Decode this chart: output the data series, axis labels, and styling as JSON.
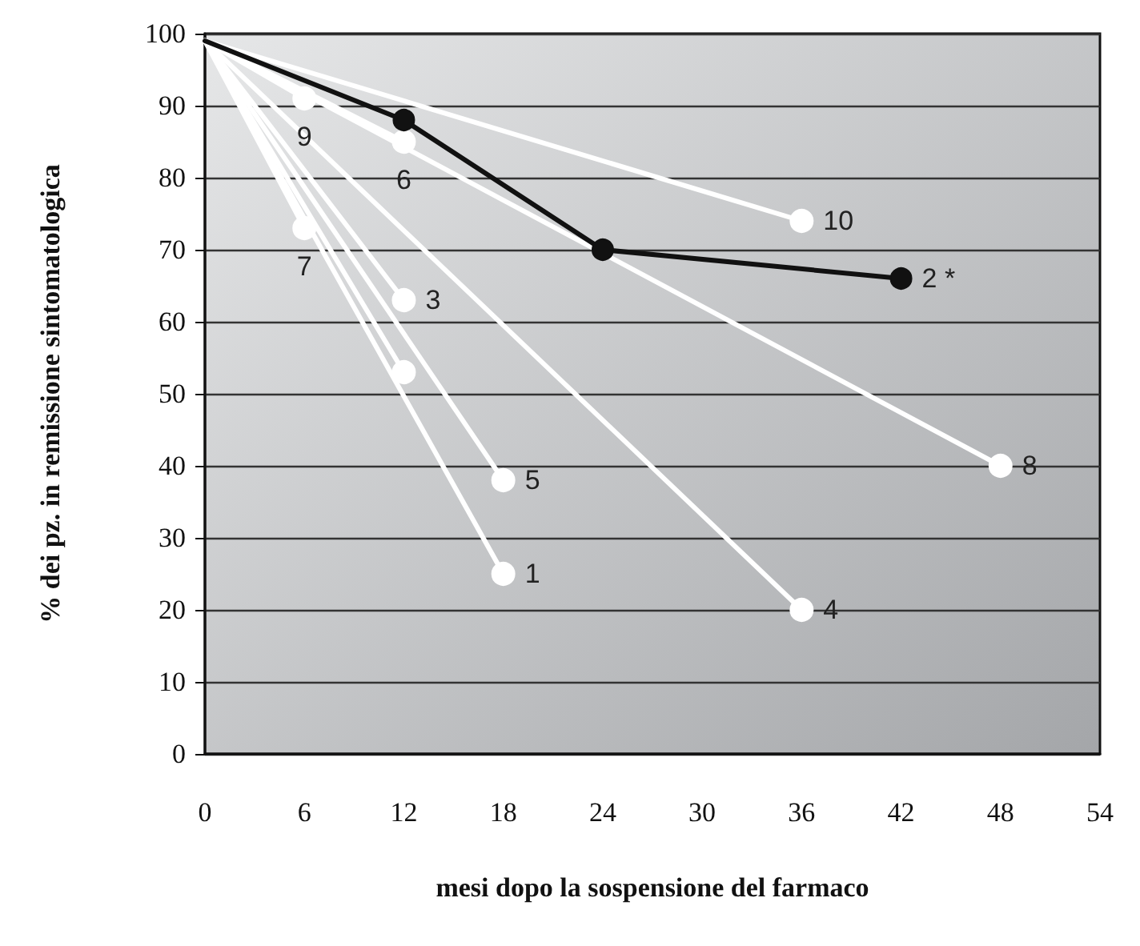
{
  "chart_data": {
    "type": "line",
    "xlabel": "mesi dopo la sospensione del farmaco",
    "ylabel": "% dei pz. in remissione sintomatologica",
    "xlim": [
      0,
      54
    ],
    "xticks": [
      0,
      6,
      12,
      18,
      24,
      30,
      36,
      42,
      48,
      54
    ],
    "ylim": [
      0,
      100
    ],
    "yticks": [
      0,
      10,
      20,
      30,
      40,
      50,
      60,
      70,
      80,
      90,
      100
    ],
    "grid": "y",
    "legend": false,
    "marker": "circle",
    "line_style": "solid",
    "series": [
      {
        "name": "1",
        "color": "#ffffff",
        "x": [
          0,
          18
        ],
        "values": [
          99,
          25
        ]
      },
      {
        "name": "2 *",
        "color": "#111111",
        "x": [
          0,
          12,
          24,
          42
        ],
        "values": [
          99,
          88,
          70,
          66
        ]
      },
      {
        "name": "3",
        "color": "#ffffff",
        "x": [
          0,
          12
        ],
        "values": [
          99,
          63
        ]
      },
      {
        "name": "4",
        "color": "#ffffff",
        "x": [
          0,
          36
        ],
        "values": [
          99,
          20
        ]
      },
      {
        "name": "5",
        "color": "#ffffff",
        "x": [
          0,
          18
        ],
        "values": [
          99,
          38
        ]
      },
      {
        "name": "6",
        "color": "#ffffff",
        "x": [
          0,
          12
        ],
        "values": [
          99,
          85
        ]
      },
      {
        "name": "7",
        "color": "#ffffff",
        "x": [
          0,
          6
        ],
        "values": [
          99,
          73
        ]
      },
      {
        "name": "8",
        "color": "#ffffff",
        "x": [
          0,
          48
        ],
        "values": [
          99,
          40
        ]
      },
      {
        "name": "9",
        "color": "#ffffff",
        "x": [
          0,
          6
        ],
        "values": [
          99,
          91
        ]
      },
      {
        "name": "10",
        "color": "#ffffff",
        "x": [
          0,
          36
        ],
        "values": [
          99,
          74
        ]
      },
      {
        "color": "#ffffff",
        "x": [
          0,
          12
        ],
        "values": [
          99,
          53
        ]
      }
    ]
  }
}
